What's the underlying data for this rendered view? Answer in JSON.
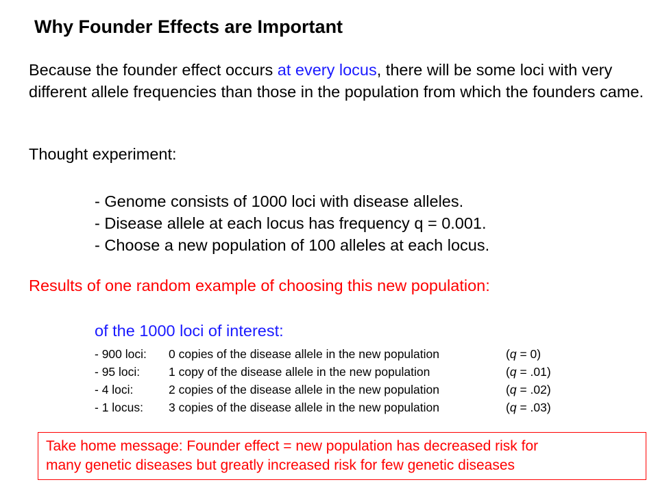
{
  "title": "Why Founder Effects are Important",
  "intro": {
    "part1": "Because the founder effect occurs ",
    "highlight": "at every locus",
    "part2": ", there will be some loci with very different allele frequencies than those in the population from which the founders came."
  },
  "thought_label": "Thought experiment:",
  "bullets": [
    "- Genome consists of 1000 loci with disease alleles.",
    "- Disease allele at each locus has frequency q = 0.001.",
    "- Choose a new population of 100 alleles at each locus."
  ],
  "results_label": "Results of one random example of choosing this new population:",
  "loci_heading": "of the 1000 loci of interest:",
  "rows": [
    {
      "count": "- 900 loci:",
      "desc": "0 copies of the disease allele in the new population",
      "q": "= 0)"
    },
    {
      "count": "- 95 loci:",
      "desc": "1 copy of the disease allele in the new population",
      "q": "= .01)"
    },
    {
      "count": "- 4 loci:",
      "desc": "2 copies of the disease allele in the new population",
      "q": "= .02)"
    },
    {
      "count": "- 1 locus:",
      "desc": "3 copies of the disease allele in the new population",
      "q": "= .03)"
    }
  ],
  "q_symbol": "q",
  "q_open": "(",
  "take_home": {
    "line1": "Take home message:  Founder effect = new population has decreased risk for",
    "line2": "many genetic diseases but greatly increased risk for few genetic diseases"
  }
}
